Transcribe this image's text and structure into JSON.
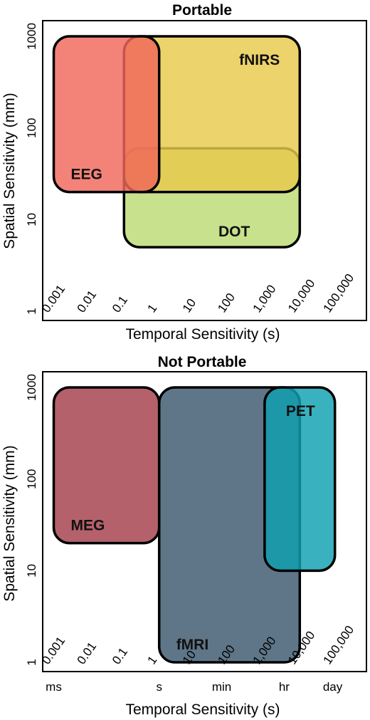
{
  "chart_data": [
    {
      "type": "area",
      "title": "Portable",
      "xlabel": "Temporal Sensitivity (s)",
      "ylabel": "Spatial Sensitivity (mm)",
      "x_scale": "log",
      "y_scale": "log",
      "xlim": [
        0.0001,
        200000
      ],
      "ylim": [
        1,
        1000
      ],
      "x_ticks": [
        {
          "value": 0.001,
          "label": "0.001"
        },
        {
          "value": 0.01,
          "label": "0.01"
        },
        {
          "value": 0.1,
          "label": "0.1"
        },
        {
          "value": 1,
          "label": "1"
        },
        {
          "value": 10,
          "label": "10"
        },
        {
          "value": 100,
          "label": "100"
        },
        {
          "value": 1000,
          "label": "1,000"
        },
        {
          "value": 10000,
          "label": "10,000"
        },
        {
          "value": 100000,
          "label": "100,000"
        }
      ],
      "y_ticks": [
        {
          "value": 1,
          "label": "1"
        },
        {
          "value": 10,
          "label": "10"
        },
        {
          "value": 100,
          "label": "100"
        },
        {
          "value": 1000,
          "label": "1000"
        }
      ],
      "regions": [
        {
          "label": "DOT",
          "x": [
            0.1,
            10000
          ],
          "y": [
            5,
            60
          ],
          "color": "#bcdb74"
        },
        {
          "label": "fNIRS",
          "x": [
            0.1,
            10000
          ],
          "y": [
            20,
            1000
          ],
          "color": "#e8c94a"
        },
        {
          "label": "EEG",
          "x": [
            0.001,
            1
          ],
          "y": [
            20,
            1000
          ],
          "color": "#f0665a"
        }
      ]
    },
    {
      "type": "area",
      "title": "Not Portable",
      "xlabel": "Temporal Sensitivity (s)",
      "ylabel": "Spatial Sensitivity (mm)",
      "x_scale": "log",
      "y_scale": "log",
      "xlim": [
        0.0001,
        200000
      ],
      "ylim": [
        1,
        1000
      ],
      "x_ticks": [
        {
          "value": 0.001,
          "label": "0.001"
        },
        {
          "value": 0.01,
          "label": "0.01"
        },
        {
          "value": 0.1,
          "label": "0.1"
        },
        {
          "value": 1,
          "label": "1"
        },
        {
          "value": 10,
          "label": "10"
        },
        {
          "value": 100,
          "label": "100"
        },
        {
          "value": 1000,
          "label": "1,000"
        },
        {
          "value": 10000,
          "label": "10,000"
        },
        {
          "value": 100000,
          "label": "100,000"
        }
      ],
      "y_ticks": [
        {
          "value": 1,
          "label": "1"
        },
        {
          "value": 10,
          "label": "10"
        },
        {
          "value": 100,
          "label": "100"
        },
        {
          "value": 1000,
          "label": "1000"
        }
      ],
      "time_units": [
        {
          "label": "ms",
          "value": 0.001
        },
        {
          "label": "s",
          "value": 1
        },
        {
          "label": "min",
          "value": 60
        },
        {
          "label": "hr",
          "value": 3600
        },
        {
          "label": "day",
          "value": 86400
        }
      ],
      "regions": [
        {
          "label": "MEG",
          "x": [
            0.001,
            1
          ],
          "y": [
            20,
            1000
          ],
          "color": "#a33e4a"
        },
        {
          "label": "fMRI",
          "x": [
            1,
            10000
          ],
          "y": [
            1,
            1000
          ],
          "color": "#3b586e"
        },
        {
          "label": "PET",
          "x": [
            1000,
            100000
          ],
          "y": [
            10,
            1000
          ],
          "color": "#0fa0b0"
        }
      ]
    }
  ]
}
